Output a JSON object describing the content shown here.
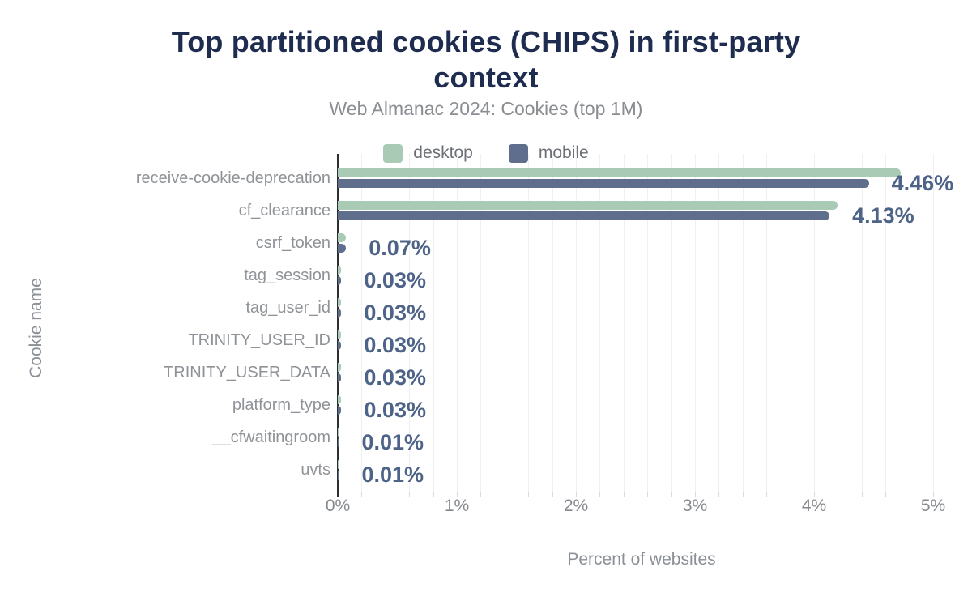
{
  "chart_data": {
    "type": "bar",
    "orientation": "horizontal",
    "title": "Top partitioned cookies (CHIPS) in first-party context",
    "title_lines": [
      "Top partitioned cookies (CHIPS) in first-party",
      "context"
    ],
    "subtitle": "Web Almanac 2024: Cookies (top 1M)",
    "xlabel": "Percent of websites",
    "ylabel": "Cookie name",
    "xlim": [
      0,
      5
    ],
    "x_tick_labels": [
      "0%",
      "1%",
      "2%",
      "3%",
      "4%",
      "5%"
    ],
    "minor_grid_step_pct": 0.2,
    "grid": "vertical-minor",
    "legend_position": "top-center",
    "legend": [
      {
        "name": "desktop",
        "color": "#a9cbb6"
      },
      {
        "name": "mobile",
        "color": "#5e6e8c"
      }
    ],
    "categories": [
      "receive-cookie-deprecation",
      "cf_clearance",
      "csrf_token",
      "tag_session",
      "tag_user_id",
      "TRINITY_USER_ID",
      "TRINITY_USER_DATA",
      "platform_type",
      "__cfwaitingroom",
      "uvts"
    ],
    "series": [
      {
        "name": "desktop",
        "values": [
          4.73,
          4.2,
          0.07,
          0.03,
          0.03,
          0.03,
          0.03,
          0.03,
          0.01,
          0.01
        ]
      },
      {
        "name": "mobile",
        "values": [
          4.46,
          4.13,
          0.07,
          0.03,
          0.03,
          0.03,
          0.03,
          0.03,
          0.01,
          0.01
        ]
      }
    ],
    "data_labels": [
      "4.46%",
      "4.13%",
      "0.07%",
      "0.03%",
      "0.03%",
      "0.03%",
      "0.03%",
      "0.03%",
      "0.01%",
      "0.01%"
    ],
    "colors": {
      "desktop": "#a9cbb6",
      "mobile": "#5e6e8c",
      "title": "#1e2c4f",
      "subtitle_text": "#8a8d91",
      "data_label": "#4d6388",
      "category_text": "#8f9398",
      "legend_text": "#6d7176",
      "axis_line": "#2b2e33",
      "gridline": "#f0f0f1",
      "tick_mark": "#d8dadc"
    }
  }
}
